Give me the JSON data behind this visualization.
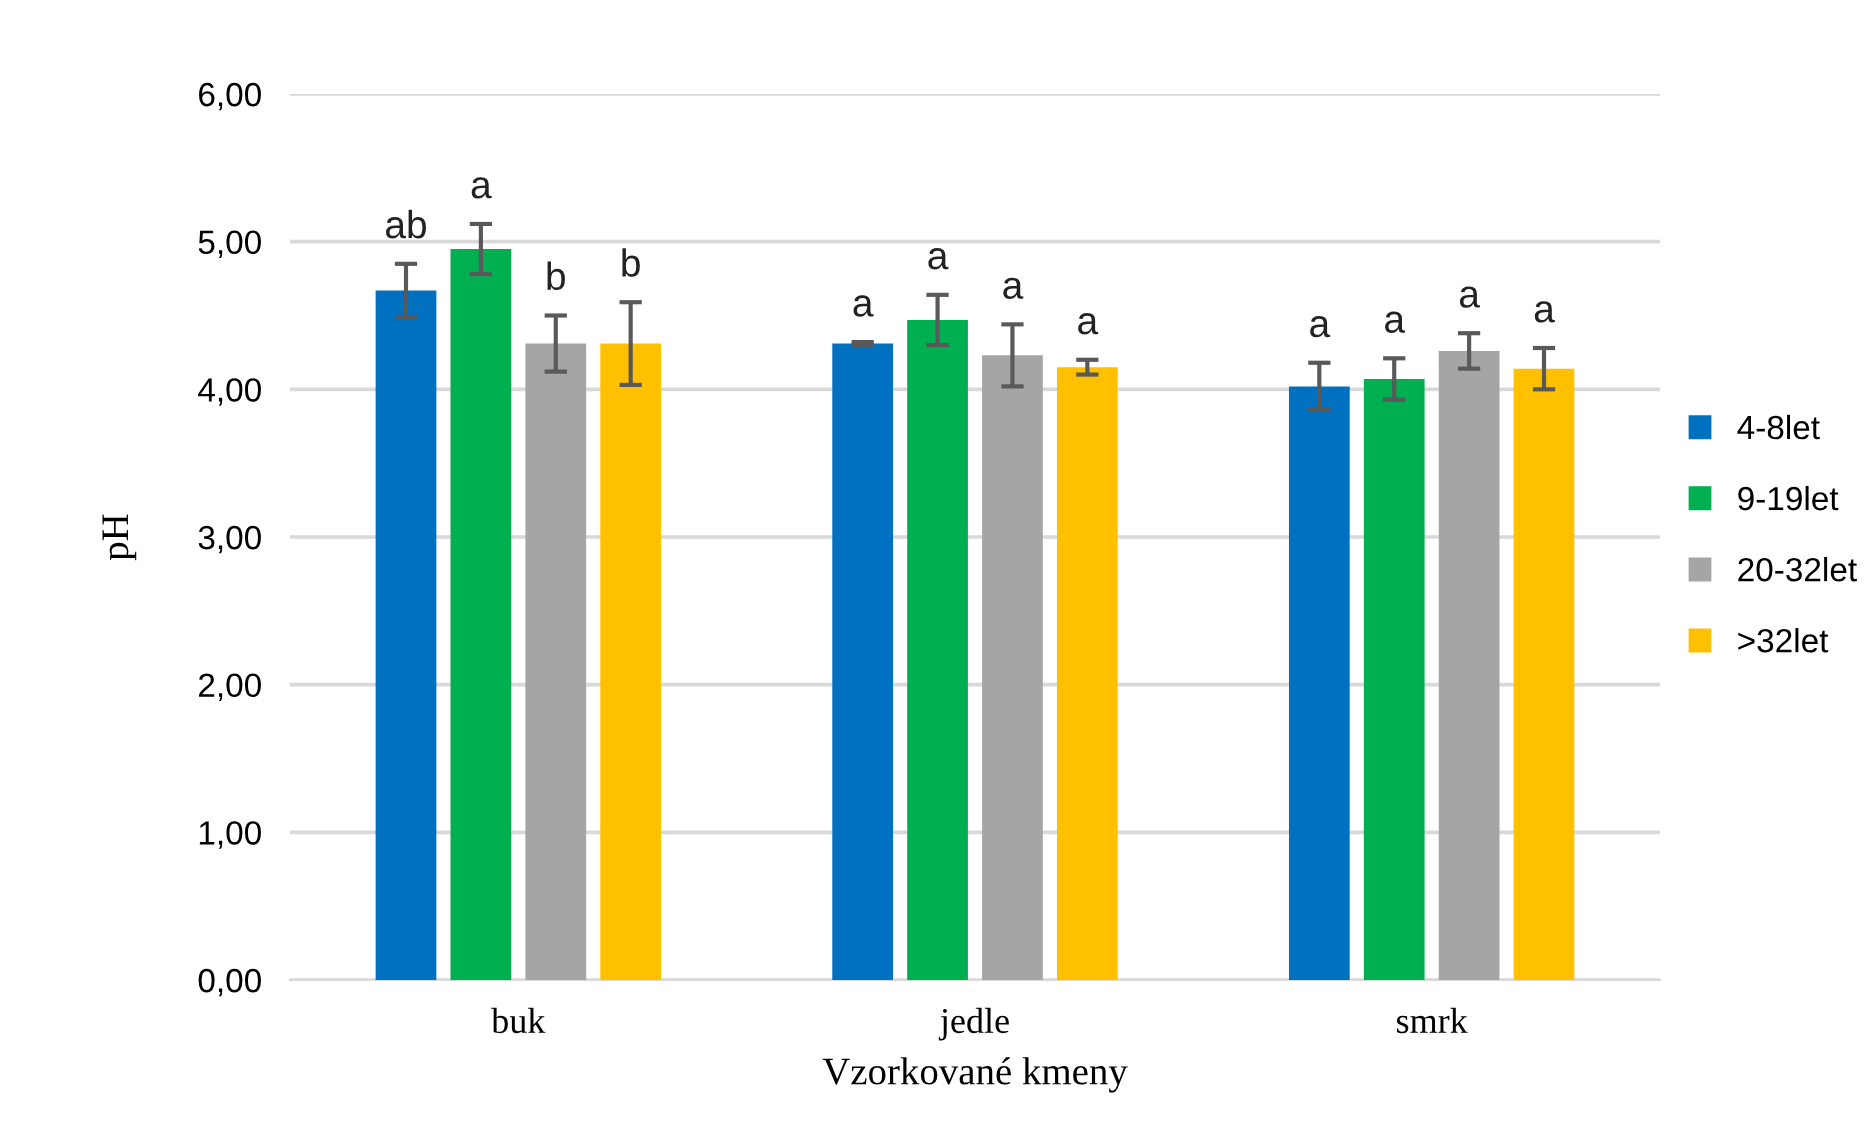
{
  "chart_data": {
    "type": "bar",
    "xlabel": "Vzorkované kmeny",
    "ylabel": "pH",
    "categories": [
      "buk",
      "jedle",
      "smrk"
    ],
    "series": [
      {
        "name": "4-8let",
        "color": "#0070c0",
        "values": [
          4.67,
          4.31,
          4.02
        ],
        "errors": [
          0.18,
          0.01,
          0.16
        ],
        "value_labels": [
          "ab",
          "a",
          "a"
        ]
      },
      {
        "name": "9-19let",
        "color": "#00b050",
        "values": [
          4.95,
          4.47,
          4.07
        ],
        "errors": [
          0.17,
          0.17,
          0.14
        ],
        "value_labels": [
          "a",
          "a",
          "a"
        ]
      },
      {
        "name": "20-32let",
        "color": "#a5a5a5",
        "values": [
          4.31,
          4.23,
          4.26
        ],
        "errors": [
          0.19,
          0.21,
          0.12
        ],
        "value_labels": [
          "b",
          "a",
          "a"
        ]
      },
      {
        "name": ">32let",
        "color": "#ffc000",
        "values": [
          4.31,
          4.15,
          4.14
        ],
        "errors": [
          0.28,
          0.05,
          0.14
        ],
        "value_labels": [
          "b",
          "a",
          "a"
        ]
      }
    ],
    "ylim": [
      0,
      6
    ],
    "yticks": [
      {
        "value": 0,
        "label": "0,00"
      },
      {
        "value": 1,
        "label": "1,00"
      },
      {
        "value": 2,
        "label": "2,00"
      },
      {
        "value": 3,
        "label": "3,00"
      },
      {
        "value": 4,
        "label": "4,00"
      },
      {
        "value": 5,
        "label": "5,00"
      },
      {
        "value": 6,
        "label": "6,00"
      }
    ],
    "grid": "y",
    "legend": "right"
  }
}
